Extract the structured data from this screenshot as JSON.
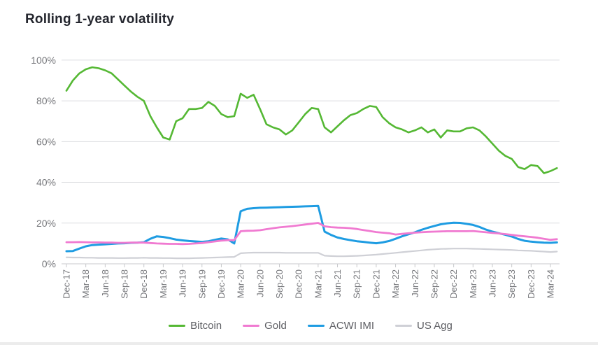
{
  "page": {
    "title": "Rolling 1-year volatility"
  },
  "chart_data": {
    "type": "line",
    "title": "Rolling 1-year volatility",
    "x_frequency": "monthly",
    "x_range": [
      "Dec-17",
      "Apr-24"
    ],
    "x_tick_labels": [
      "Dec-17",
      "Mar-18",
      "Jun-18",
      "Sep-18",
      "Dec-18",
      "Mar-19",
      "Jun-19",
      "Sep-19",
      "Dec-19",
      "Mar-20",
      "Jun-20",
      "Sep-20",
      "Dec-20",
      "Mar-21",
      "Jun-21",
      "Sep-21",
      "Dec-21",
      "Mar-22",
      "Jun-22",
      "Sep-22",
      "Dec-22",
      "Mar-23",
      "Jun-23",
      "Sep-23",
      "Dec-23",
      "Mar-24"
    ],
    "months_per_tick": 3,
    "y_ticks": [
      0,
      20,
      40,
      60,
      80,
      100
    ],
    "y_tick_suffix": "%",
    "ylim": [
      0,
      100
    ],
    "grid": "horizontal",
    "legend_position": "bottom",
    "series": [
      {
        "name": "Bitcoin",
        "color": "#55b834",
        "line_width": 2.6,
        "values": [
          85,
          90,
          93.5,
          95.5,
          96.5,
          96,
          95,
          93.5,
          90.5,
          87.5,
          84.5,
          82,
          80,
          72.5,
          67,
          62,
          61,
          70,
          71.5,
          76,
          76,
          76.5,
          79.5,
          77.5,
          73.5,
          72,
          72.5,
          83.5,
          81.5,
          83,
          76,
          68.5,
          67,
          66,
          63.5,
          65.5,
          69.5,
          73.5,
          76.5,
          76,
          67,
          64.5,
          67.5,
          70.5,
          73,
          74,
          76,
          77.5,
          77,
          72,
          69,
          67,
          66,
          64.5,
          65.5,
          67,
          64.5,
          66,
          62,
          65.5,
          65,
          65,
          66.5,
          67,
          65.5,
          62.5,
          59,
          55.5,
          53,
          51.5,
          47.5,
          46.5,
          48.5,
          48,
          44.5,
          45.5,
          47
        ]
      },
      {
        "name": "Gold",
        "color": "#f07ad1",
        "line_width": 2.8,
        "values": [
          10.6,
          10.6,
          10.7,
          10.6,
          10.5,
          10.5,
          10.4,
          10.4,
          10.3,
          10.3,
          10.4,
          10.4,
          10.4,
          10.2,
          10,
          9.9,
          9.8,
          9.8,
          9.7,
          9.8,
          10,
          10.2,
          10.6,
          11,
          11.4,
          11.6,
          11.6,
          16,
          16.2,
          16.3,
          16.5,
          17,
          17.5,
          17.9,
          18.2,
          18.5,
          18.9,
          19.3,
          19.7,
          20.1,
          18.4,
          18,
          17.8,
          17.7,
          17.5,
          17.1,
          16.6,
          16.1,
          15.6,
          15.3,
          15,
          14.4,
          14.7,
          15,
          15.3,
          15.5,
          15.7,
          15.8,
          15.9,
          16,
          16,
          16,
          16,
          16.1,
          15.8,
          15.5,
          15.2,
          14.9,
          14.6,
          14.2,
          13.8,
          13.5,
          13.2,
          12.8,
          12.3,
          11.8,
          12.1
        ]
      },
      {
        "name": "ACWI IMI",
        "color": "#1e9ce2",
        "line_width": 3,
        "values": [
          6.2,
          6.3,
          7.5,
          8.6,
          9.2,
          9.4,
          9.6,
          9.8,
          10,
          10.1,
          10.3,
          10.4,
          10.6,
          12.3,
          13.5,
          13.2,
          12.6,
          11.9,
          11.5,
          11.2,
          11,
          10.8,
          11.1,
          11.8,
          12.4,
          12,
          10,
          25.8,
          27,
          27.3,
          27.5,
          27.6,
          27.7,
          27.8,
          27.9,
          28,
          28.1,
          28.2,
          28.3,
          28.4,
          15.8,
          14.2,
          12.9,
          12.2,
          11.6,
          11.1,
          10.8,
          10.4,
          10.1,
          10.5,
          11.2,
          12.3,
          13.5,
          14.5,
          15.5,
          16.7,
          17.7,
          18.6,
          19.4,
          19.9,
          20.2,
          20.1,
          19.6,
          19.1,
          18.1,
          16.8,
          15.8,
          15,
          14.3,
          13.4,
          12.2,
          11.3,
          10.9,
          10.6,
          10.4,
          10.3,
          10.5
        ]
      },
      {
        "name": "US Agg",
        "color": "#cfd0d6",
        "line_width": 2.2,
        "values": [
          3.2,
          3.1,
          3.1,
          3,
          3,
          2.9,
          2.9,
          2.9,
          2.8,
          2.8,
          2.9,
          2.9,
          3,
          2.9,
          2.9,
          2.8,
          2.8,
          2.7,
          2.7,
          2.7,
          2.8,
          2.9,
          3,
          3.1,
          3.2,
          3.3,
          3.4,
          5.2,
          5.4,
          5.5,
          5.5,
          5.5,
          5.5,
          5.5,
          5.4,
          5.4,
          5.4,
          5.4,
          5.4,
          5.4,
          4,
          3.8,
          3.7,
          3.7,
          3.8,
          3.9,
          4.1,
          4.3,
          4.5,
          4.8,
          5.1,
          5.4,
          5.7,
          6,
          6.3,
          6.6,
          6.9,
          7.1,
          7.3,
          7.4,
          7.5,
          7.5,
          7.5,
          7.4,
          7.3,
          7.2,
          7.1,
          7,
          6.9,
          6.8,
          6.6,
          6.5,
          6.4,
          6.2,
          6,
          5.8,
          6
        ]
      }
    ],
    "draw_order": [
      3,
      0,
      2,
      1
    ]
  }
}
